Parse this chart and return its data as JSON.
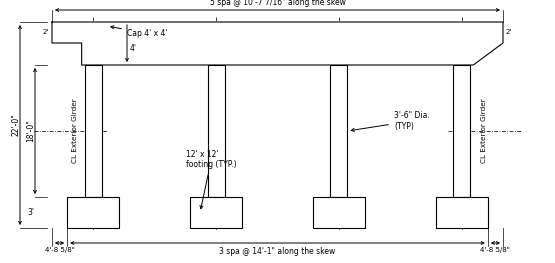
{
  "bg_color": "#ffffff",
  "line_color": "#000000",
  "title_top": "5 spa @ 10'-7 7/16\" along the skew",
  "label_cap": "Cap 4' x 4'",
  "label_col_dia": "3'-6\" Dia.\n(TYP)",
  "label_footing": "12' x 12'\nfooting (TYP.)",
  "label_col_height": "18'-0\"",
  "label_total_height": "22'-0\"",
  "label_footing_depth": "3'",
  "label_cap_depth_left": "2'",
  "label_cap_depth_right": "2'",
  "label_cap_arrow": "4'",
  "label_bottom_span": "3 spa @ 14'-1\" along the skew",
  "label_bottom_left": "4'-8 5/8\"",
  "label_bottom_right": "4'-8 5/8\"",
  "label_cl_left": "CL Exterior Girder",
  "label_cl_right": "CL Exterior Girder"
}
